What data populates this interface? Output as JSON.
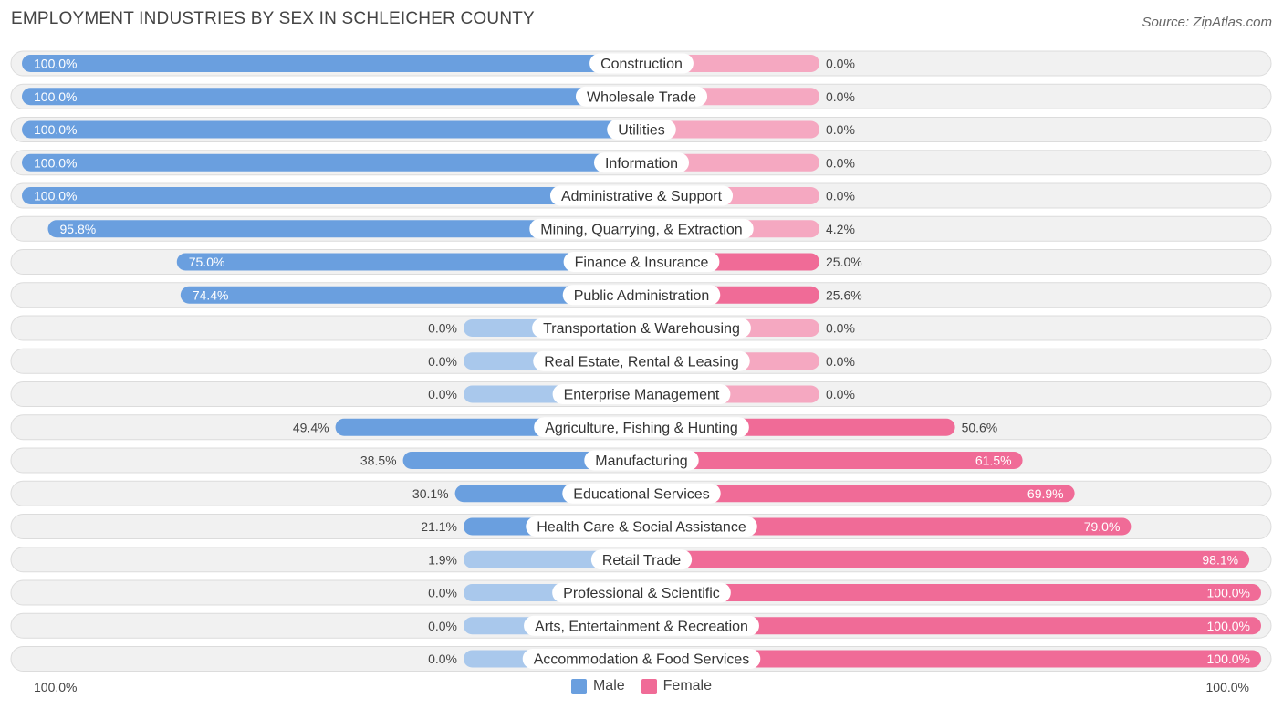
{
  "title": "EMPLOYMENT INDUSTRIES BY SEX IN SCHLEICHER COUNTY",
  "source": "Source: ZipAtlas.com",
  "colors": {
    "male": "#6a9fdf",
    "male_light": "#a9c8ec",
    "female": "#f06b97",
    "female_light": "#f5a8c1"
  },
  "legend": {
    "male": "Male",
    "female": "Female"
  },
  "axis": {
    "left": "100.0%",
    "right": "100.0%"
  },
  "chart_data": {
    "type": "bar",
    "orientation": "horizontal-diverging",
    "title": "EMPLOYMENT INDUSTRIES BY SEX IN SCHLEICHER COUNTY",
    "xlim": [
      -100,
      100
    ],
    "categories": [
      "Construction",
      "Wholesale Trade",
      "Utilities",
      "Information",
      "Administrative & Support",
      "Mining, Quarrying, & Extraction",
      "Finance & Insurance",
      "Public Administration",
      "Transportation & Warehousing",
      "Real Estate, Rental & Leasing",
      "Enterprise Management",
      "Agriculture, Fishing & Hunting",
      "Manufacturing",
      "Educational Services",
      "Health Care & Social Assistance",
      "Retail Trade",
      "Professional & Scientific",
      "Arts, Entertainment & Recreation",
      "Accommodation & Food Services"
    ],
    "series": [
      {
        "name": "Male",
        "values": [
          100.0,
          100.0,
          100.0,
          100.0,
          100.0,
          95.8,
          75.0,
          74.4,
          0.0,
          0.0,
          0.0,
          49.4,
          38.5,
          30.1,
          21.1,
          1.9,
          0.0,
          0.0,
          0.0
        ],
        "labels": [
          "100.0%",
          "100.0%",
          "100.0%",
          "100.0%",
          "100.0%",
          "95.8%",
          "75.0%",
          "74.4%",
          "0.0%",
          "0.0%",
          "0.0%",
          "49.4%",
          "38.5%",
          "30.1%",
          "21.1%",
          "1.9%",
          "0.0%",
          "0.0%",
          "0.0%"
        ]
      },
      {
        "name": "Female",
        "values": [
          0.0,
          0.0,
          0.0,
          0.0,
          0.0,
          4.2,
          25.0,
          25.6,
          0.0,
          0.0,
          0.0,
          50.6,
          61.5,
          69.9,
          79.0,
          98.1,
          100.0,
          100.0,
          100.0
        ],
        "labels": [
          "0.0%",
          "0.0%",
          "0.0%",
          "0.0%",
          "0.0%",
          "4.2%",
          "25.0%",
          "25.6%",
          "0.0%",
          "0.0%",
          "0.0%",
          "50.6%",
          "61.5%",
          "69.9%",
          "79.0%",
          "98.1%",
          "100.0%",
          "100.0%",
          "100.0%"
        ]
      }
    ]
  }
}
